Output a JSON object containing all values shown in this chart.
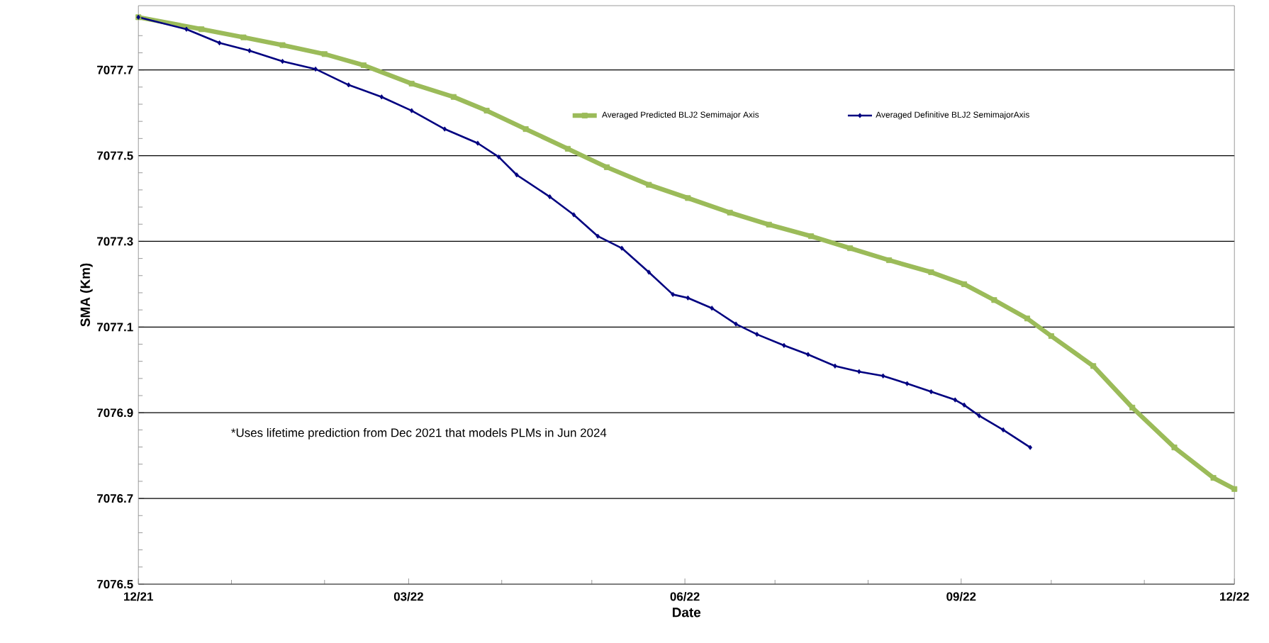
{
  "chart_data": {
    "type": "line",
    "xlabel": "Date",
    "ylabel": "SMA (Km)",
    "annotations": [
      "*Uses lifetime prediction from Dec 2021  that models PLMs in Jun 2024"
    ],
    "xlim": [
      "2021-12-01",
      "2022-12-01"
    ],
    "xticks": [
      {
        "value": "2021-12-01",
        "label": "12/21"
      },
      {
        "value": "2022-01-01",
        "label": null
      },
      {
        "value": "2022-02-01",
        "label": null
      },
      {
        "value": "2022-03-01",
        "label": "03/22"
      },
      {
        "value": "2022-04-01",
        "label": null
      },
      {
        "value": "2022-05-01",
        "label": null
      },
      {
        "value": "2022-06-01",
        "label": "06/22"
      },
      {
        "value": "2022-07-01",
        "label": null
      },
      {
        "value": "2022-08-01",
        "label": null
      },
      {
        "value": "2022-09-01",
        "label": "09/22"
      },
      {
        "value": "2022-10-01",
        "label": null
      },
      {
        "value": "2022-11-01",
        "label": null
      },
      {
        "value": "2022-12-01",
        "label": "12/22"
      }
    ],
    "ylim": [
      7076.5,
      7077.85
    ],
    "yticks": [
      7076.5,
      {
        "value": 7076.54,
        "label": null
      },
      {
        "value": 7076.58,
        "label": null
      },
      {
        "value": 7076.62,
        "label": null
      },
      {
        "value": 7076.66,
        "label": null
      },
      7076.7,
      {
        "value": 7076.74,
        "label": null
      },
      {
        "value": 7076.78,
        "label": null
      },
      {
        "value": 7076.82,
        "label": null
      },
      {
        "value": 7076.86,
        "label": null
      },
      7076.9,
      {
        "value": 7076.94,
        "label": null
      },
      {
        "value": 7076.98,
        "label": null
      },
      {
        "value": 7077.02,
        "label": null
      },
      {
        "value": 7077.06,
        "label": null
      },
      7077.1,
      {
        "value": 7077.14,
        "label": null
      },
      {
        "value": 7077.18,
        "label": null
      },
      {
        "value": 7077.22,
        "label": null
      },
      {
        "value": 7077.26,
        "label": null
      },
      7077.3,
      {
        "value": 7077.34,
        "label": null
      },
      {
        "value": 7077.38,
        "label": null
      },
      {
        "value": 7077.42,
        "label": null
      },
      {
        "value": 7077.46,
        "label": null
      },
      7077.5,
      {
        "value": 7077.54,
        "label": null
      },
      {
        "value": 7077.58,
        "label": null
      },
      {
        "value": 7077.62,
        "label": null
      },
      {
        "value": 7077.66,
        "label": null
      },
      7077.7,
      {
        "value": 7077.74,
        "label": null
      },
      {
        "value": 7077.78,
        "label": null
      },
      {
        "value": 7077.82,
        "label": null
      }
    ],
    "grid": "y",
    "legend": "top right",
    "series": [
      {
        "name": "Averaged Predicted BLJ2 Semimajor Axis",
        "color": "#9bbb59",
        "marker": "square",
        "x": [
          "2021-12-01",
          "2021-12-22",
          "2022-01-05",
          "2022-01-18",
          "2022-02-01",
          "2022-02-14",
          "2022-03-02",
          "2022-03-16",
          "2022-03-27",
          "2022-04-09",
          "2022-04-23",
          "2022-05-06",
          "2022-05-20",
          "2022-06-02",
          "2022-06-16",
          "2022-06-29",
          "2022-07-13",
          "2022-07-26",
          "2022-08-08",
          "2022-08-22",
          "2022-09-02",
          "2022-09-12",
          "2022-09-23",
          "2022-10-01",
          "2022-10-15",
          "2022-10-28",
          "2022-11-11",
          "2022-11-24",
          "2022-12-01"
        ],
        "values": [
          7077.823,
          7077.795,
          7077.776,
          7077.758,
          7077.737,
          7077.711,
          7077.668,
          7077.637,
          7077.605,
          7077.562,
          7077.516,
          7077.473,
          7077.432,
          7077.401,
          7077.367,
          7077.339,
          7077.312,
          7077.284,
          7077.256,
          7077.228,
          7077.2,
          7077.163,
          7077.12,
          7077.079,
          7077.009,
          7076.912,
          7076.819,
          7076.748,
          7076.722
        ]
      },
      {
        "name": "Averaged Definitive BLJ2 SemimajorAxis",
        "color": "#000080",
        "marker": "diamond",
        "x": [
          "2021-12-01",
          "2021-12-17",
          "2021-12-28",
          "2022-01-07",
          "2022-01-18",
          "2022-01-29",
          "2022-02-09",
          "2022-02-20",
          "2022-03-02",
          "2022-03-13",
          "2022-03-24",
          "2022-03-31",
          "2022-04-06",
          "2022-04-17",
          "2022-04-25",
          "2022-05-03",
          "2022-05-11",
          "2022-05-20",
          "2022-05-28",
          "2022-06-02",
          "2022-06-10",
          "2022-06-18",
          "2022-06-25",
          "2022-07-04",
          "2022-07-12",
          "2022-07-21",
          "2022-07-29",
          "2022-08-06",
          "2022-08-14",
          "2022-08-22",
          "2022-08-30",
          "2022-09-02",
          "2022-09-07",
          "2022-09-15",
          "2022-09-24"
        ],
        "values": [
          7077.823,
          7077.795,
          7077.763,
          7077.745,
          7077.72,
          7077.702,
          7077.665,
          7077.637,
          7077.605,
          7077.562,
          7077.529,
          7077.497,
          7077.455,
          7077.404,
          7077.362,
          7077.312,
          7077.284,
          7077.228,
          7077.176,
          7077.168,
          7077.144,
          7077.107,
          7077.083,
          7077.057,
          7077.036,
          7077.009,
          7076.996,
          7076.986,
          7076.968,
          7076.949,
          7076.93,
          7076.918,
          7076.893,
          7076.86,
          7076.819
        ]
      }
    ]
  }
}
